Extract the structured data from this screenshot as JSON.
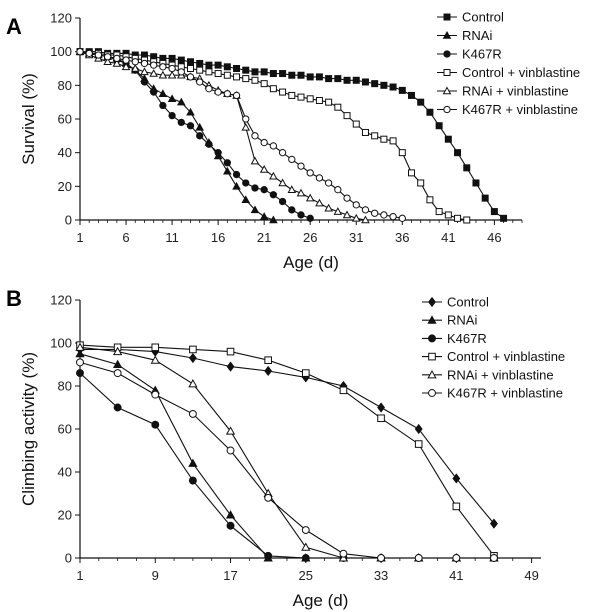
{
  "chart_data": [
    {
      "panel": "A",
      "type": "line",
      "xlabel": "Age (d)",
      "ylabel": "Survival (%)",
      "xticks": [
        1,
        6,
        11,
        16,
        21,
        26,
        31,
        36,
        41,
        46
      ],
      "yticks": [
        0,
        20,
        40,
        60,
        80,
        100,
        120
      ],
      "xlim": [
        1,
        49
      ],
      "ylim": [
        0,
        120
      ],
      "grid": false,
      "legend_position": "top-right",
      "series": [
        {
          "name": "Control",
          "marker": "square-filled",
          "x": [
            1,
            2,
            3,
            4,
            5,
            6,
            7,
            8,
            9,
            10,
            11,
            12,
            13,
            14,
            15,
            16,
            17,
            18,
            19,
            20,
            21,
            22,
            23,
            24,
            25,
            26,
            27,
            28,
            29,
            30,
            31,
            32,
            33,
            34,
            35,
            36,
            37,
            38,
            39,
            40,
            41,
            42,
            43,
            44,
            45,
            46,
            47
          ],
          "y": [
            100,
            100,
            100,
            99,
            99,
            99,
            98,
            98,
            97,
            96,
            96,
            95,
            94,
            93,
            92,
            92,
            91,
            90,
            89,
            88,
            88,
            87,
            87,
            86,
            86,
            85,
            85,
            84,
            84,
            83,
            83,
            82,
            81,
            80,
            79,
            77,
            74,
            70,
            64,
            56,
            48,
            40,
            31,
            22,
            13,
            5,
            1
          ]
        },
        {
          "name": "RNAi",
          "marker": "triangle-filled",
          "x": [
            1,
            2,
            3,
            4,
            5,
            6,
            7,
            8,
            9,
            10,
            11,
            12,
            13,
            14,
            15,
            16,
            17,
            18,
            19,
            20,
            21,
            22
          ],
          "y": [
            100,
            99,
            98,
            97,
            96,
            93,
            89,
            84,
            78,
            75,
            72,
            70,
            64,
            55,
            46,
            38,
            29,
            20,
            12,
            6,
            2,
            0
          ]
        },
        {
          "name": "K467R",
          "marker": "circle-filled",
          "x": [
            1,
            2,
            3,
            4,
            5,
            6,
            7,
            8,
            9,
            10,
            11,
            12,
            13,
            14,
            15,
            16,
            17,
            18,
            19,
            20,
            21,
            22,
            23,
            24,
            25,
            26
          ],
          "y": [
            100,
            99,
            98,
            97,
            95,
            93,
            89,
            82,
            76,
            68,
            62,
            58,
            56,
            50,
            45,
            40,
            34,
            27,
            22,
            19,
            18,
            15,
            11,
            6,
            3,
            1
          ]
        },
        {
          "name": "Control + vinblastine",
          "marker": "square-open",
          "x": [
            1,
            2,
            3,
            4,
            5,
            6,
            7,
            8,
            9,
            10,
            11,
            12,
            13,
            14,
            15,
            16,
            17,
            18,
            19,
            20,
            21,
            22,
            23,
            24,
            25,
            26,
            27,
            28,
            29,
            30,
            31,
            32,
            33,
            34,
            35,
            36,
            37,
            38,
            39,
            40,
            41,
            42,
            43
          ],
          "y": [
            100,
            99,
            99,
            98,
            98,
            97,
            96,
            95,
            94,
            93,
            92,
            91,
            90,
            89,
            88,
            87,
            86,
            85,
            84,
            83,
            81,
            78,
            76,
            74,
            73,
            72,
            71,
            70,
            67,
            62,
            57,
            52,
            50,
            48,
            47,
            40,
            28,
            22,
            12,
            5,
            3,
            1,
            0
          ]
        },
        {
          "name": "RNAi + vinblastine",
          "marker": "triangle-open",
          "x": [
            1,
            2,
            3,
            4,
            5,
            6,
            7,
            8,
            9,
            10,
            11,
            12,
            13,
            14,
            15,
            16,
            17,
            18,
            19,
            20,
            21,
            22,
            23,
            24,
            25,
            26,
            27,
            28,
            29,
            30,
            31,
            32
          ],
          "y": [
            100,
            98,
            96,
            94,
            93,
            91,
            90,
            88,
            87,
            86,
            86,
            86,
            85,
            84,
            80,
            77,
            75,
            74,
            55,
            35,
            30,
            26,
            22,
            18,
            16,
            13,
            10,
            7,
            5,
            3,
            1,
            0
          ]
        },
        {
          "name": "K467R + vinblastine",
          "marker": "circle-open",
          "x": [
            1,
            2,
            3,
            4,
            5,
            6,
            7,
            8,
            9,
            10,
            11,
            12,
            13,
            14,
            15,
            16,
            17,
            18,
            19,
            20,
            21,
            22,
            23,
            24,
            25,
            26,
            27,
            28,
            29,
            30,
            31,
            32,
            33,
            34,
            35,
            36
          ],
          "y": [
            100,
            99,
            98,
            97,
            96,
            95,
            94,
            93,
            92,
            91,
            90,
            88,
            85,
            82,
            78,
            76,
            75,
            74,
            60,
            50,
            46,
            44,
            40,
            36,
            32,
            28,
            25,
            22,
            18,
            13,
            9,
            6,
            4,
            3,
            2,
            1
          ]
        }
      ]
    },
    {
      "panel": "B",
      "type": "line",
      "xlabel": "Age (d)",
      "ylabel": "Climbing activity (%)",
      "xticks": [
        1,
        9,
        17,
        25,
        33,
        41,
        49
      ],
      "yticks": [
        0,
        20,
        40,
        60,
        80,
        100,
        120
      ],
      "xlim": [
        1,
        50
      ],
      "ylim": [
        0,
        120
      ],
      "grid": false,
      "legend_position": "top-right",
      "series": [
        {
          "name": "Control",
          "marker": "diamond-filled",
          "x": [
            1,
            5,
            9,
            13,
            17,
            21,
            25,
            29,
            33,
            37,
            41,
            45
          ],
          "y": [
            97,
            97,
            96,
            93,
            89,
            87,
            84,
            80,
            70,
            60,
            37,
            16
          ]
        },
        {
          "name": "RNAi",
          "marker": "triangle-filled",
          "x": [
            1,
            5,
            9,
            13,
            17,
            21,
            25,
            29,
            33,
            37,
            41,
            45
          ],
          "y": [
            95,
            90,
            78,
            44,
            20,
            0,
            0,
            0,
            0,
            0,
            0,
            0
          ]
        },
        {
          "name": "K467R",
          "marker": "circle-filled",
          "x": [
            1,
            5,
            9,
            13,
            17,
            21,
            25,
            29,
            33,
            37,
            41,
            45
          ],
          "y": [
            86,
            70,
            62,
            36,
            15,
            1,
            0,
            0,
            0,
            0,
            0,
            0
          ]
        },
        {
          "name": "Control + vinblastine",
          "marker": "square-open",
          "x": [
            1,
            5,
            9,
            13,
            17,
            21,
            25,
            29,
            33,
            37,
            41,
            45
          ],
          "y": [
            99,
            98,
            98,
            97,
            96,
            92,
            86,
            78,
            65,
            53,
            24,
            1
          ]
        },
        {
          "name": "RNAi + vinblastine",
          "marker": "triangle-open",
          "x": [
            1,
            5,
            9,
            13,
            17,
            21,
            25,
            29,
            33,
            37,
            41,
            45
          ],
          "y": [
            98,
            96,
            92,
            81,
            59,
            30,
            5,
            0,
            0,
            0,
            0,
            0
          ]
        },
        {
          "name": "K467R + vinblastine",
          "marker": "circle-open",
          "x": [
            1,
            5,
            9,
            13,
            17,
            21,
            25,
            29,
            33,
            37,
            41,
            45
          ],
          "y": [
            91,
            86,
            76,
            67,
            50,
            28,
            13,
            2,
            0,
            0,
            0,
            0
          ]
        }
      ]
    }
  ]
}
